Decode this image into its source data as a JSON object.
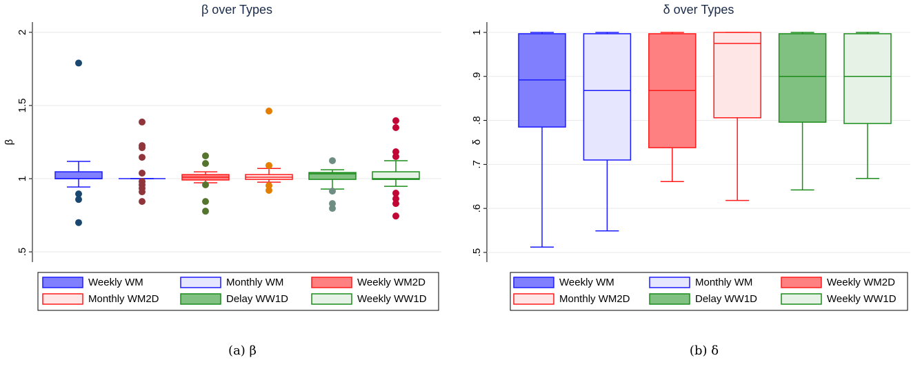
{
  "chart_data": [
    {
      "type": "box",
      "title": "β over Types",
      "y_label": "β",
      "caption": "(a) β",
      "ylim": [
        0.43,
        2.07
      ],
      "yticks": [
        {
          "value": 0.5,
          "label": ".5"
        },
        1,
        1.5,
        2
      ],
      "grid": true,
      "series": [
        {
          "name": "Weekly WM",
          "fill": "#8080ff",
          "color": "#1a1aff",
          "marker_color": "#1a476f",
          "q1": 1.0,
          "median": 1.0,
          "q3": 1.047,
          "whisker_low": 0.943,
          "whisker_high": 1.118,
          "outliers": [
            1.79,
            0.896,
            0.858,
            0.7
          ]
        },
        {
          "name": "Monthly WM",
          "fill": "#e6e6ff",
          "color": "#1a1aff",
          "marker_color": "#90353b",
          "q1": 1.0,
          "median": 1.0,
          "q3": 1.0,
          "whisker_low": 1.0,
          "whisker_high": 1.0,
          "outliers": [
            1.387,
            1.226,
            1.212,
            1.146,
            1.038,
            0.981,
            0.958,
            0.934,
            0.91,
            0.844
          ]
        },
        {
          "name": "Weekly WM2D",
          "fill": "#ff8080",
          "color": "#ff1a1a",
          "marker_color": "#55752f",
          "q1": 0.991,
          "median": 1.01,
          "q3": 1.028,
          "whisker_low": 0.972,
          "whisker_high": 1.047,
          "outliers": [
            1.156,
            1.104,
            0.958,
            0.844,
            0.778
          ]
        },
        {
          "name": "Monthly WM2D",
          "fill": "#ffe6e6",
          "color": "#ff1a1a",
          "marker_color": "#e37e00",
          "q1": 0.995,
          "median": 1.01,
          "q3": 1.028,
          "whisker_low": 0.976,
          "whisker_high": 1.07,
          "outliers": [
            1.462,
            1.09,
            0.953,
            0.92
          ]
        },
        {
          "name": "Delay WW1D",
          "fill": "#80c080",
          "color": "#1a8c1a",
          "marker_color": "#6e8e84",
          "q1": 0.995,
          "median": 1.033,
          "q3": 1.042,
          "whisker_low": 0.929,
          "whisker_high": 1.061,
          "outliers": [
            1.123,
            0.915,
            0.83,
            0.797
          ]
        },
        {
          "name": "Weekly WW1D",
          "fill": "#e6f2e6",
          "color": "#1a8c1a",
          "marker_color": "#c10534",
          "q1": 0.995,
          "median": 1.0,
          "q3": 1.047,
          "whisker_low": 0.948,
          "whisker_high": 1.123,
          "outliers": [
            1.396,
            1.349,
            1.184,
            1.151,
            0.901,
            0.863,
            0.83,
            0.745
          ]
        }
      ]
    },
    {
      "type": "box",
      "title": "δ over Types",
      "y_label": "δ",
      "caption": "(b) δ",
      "ylim": [
        0.478,
        1.0235
      ],
      "yticks": [
        {
          "value": 0.5,
          "label": ".5"
        },
        {
          "value": 0.6,
          "label": ".6"
        },
        {
          "value": 0.7,
          "label": ".7"
        },
        {
          "value": 0.8,
          "label": ".8"
        },
        {
          "value": 0.9,
          "label": ".9"
        },
        1
      ],
      "grid": true,
      "series": [
        {
          "name": "Weekly WM",
          "fill": "#8080ff",
          "color": "#1a1aff",
          "q1": 0.785,
          "median": 0.892,
          "q3": 0.997,
          "whisker_low": 0.512,
          "whisker_high": 1.0
        },
        {
          "name": "Monthly WM",
          "fill": "#e6e6ff",
          "color": "#1a1aff",
          "q1": 0.71,
          "median": 0.868,
          "q3": 0.997,
          "whisker_low": 0.549,
          "whisker_high": 1.0
        },
        {
          "name": "Weekly WM2D",
          "fill": "#ff8080",
          "color": "#ff1a1a",
          "q1": 0.738,
          "median": 0.868,
          "q3": 0.997,
          "whisker_low": 0.661,
          "whisker_high": 1.0
        },
        {
          "name": "Monthly WM2D",
          "fill": "#ffe6e6",
          "color": "#ff1a1a",
          "q1": 0.806,
          "median": 0.975,
          "q3": 1.0,
          "whisker_low": 0.618,
          "whisker_high": 1.0
        },
        {
          "name": "Delay WW1D",
          "fill": "#80c080",
          "color": "#1a8c1a",
          "q1": 0.796,
          "median": 0.9,
          "q3": 0.997,
          "whisker_low": 0.642,
          "whisker_high": 1.0
        },
        {
          "name": "Weekly WW1D",
          "fill": "#e6f2e6",
          "color": "#1a8c1a",
          "q1": 0.793,
          "median": 0.9,
          "q3": 0.997,
          "whisker_low": 0.668,
          "whisker_high": 1.0
        }
      ]
    }
  ]
}
